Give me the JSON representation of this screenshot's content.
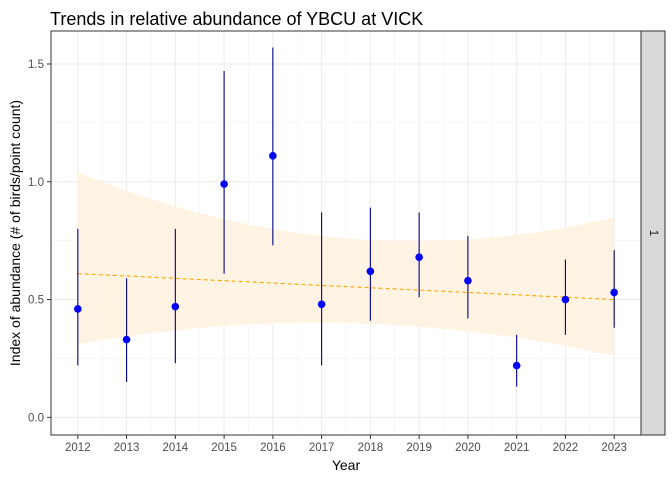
{
  "chart_data": {
    "type": "scatter",
    "title": "Trends in relative abundance of YBCU at VICK",
    "xlabel": "Year",
    "ylabel": "Index of abundance (# of birds/point count)",
    "facet_label": "1",
    "x": [
      2012,
      2013,
      2014,
      2015,
      2016,
      2017,
      2018,
      2019,
      2020,
      2021,
      2022,
      2023
    ],
    "y": [
      0.46,
      0.33,
      0.47,
      0.99,
      1.11,
      0.48,
      0.62,
      0.68,
      0.58,
      0.22,
      0.5,
      0.53
    ],
    "ymin": [
      0.22,
      0.15,
      0.23,
      0.61,
      0.73,
      0.22,
      0.41,
      0.51,
      0.42,
      0.13,
      0.35,
      0.38
    ],
    "ymax": [
      0.8,
      0.59,
      0.8,
      1.47,
      1.57,
      0.87,
      0.89,
      0.87,
      0.77,
      0.35,
      0.67,
      0.71
    ],
    "trend": {
      "x": [
        2012,
        2023
      ],
      "y": [
        0.61,
        0.5
      ],
      "band_lower": [
        0.31,
        0.26
      ],
      "band_upper": [
        1.04,
        0.85
      ],
      "band_mid_year": 2017.5,
      "band_mid_lower": [
        0.4
      ],
      "band_mid_upper": [
        0.76
      ],
      "line_color": "#FFA500",
      "band_color": "#FFF3E0"
    },
    "point_color": "#0000FF",
    "errorbar_color": "#00008B",
    "x_ticks": [
      2012,
      2013,
      2014,
      2015,
      2016,
      2017,
      2018,
      2019,
      2020,
      2021,
      2022,
      2023
    ],
    "x_tick_labels": [
      "2012",
      "2013",
      "2014",
      "2015",
      "2016",
      "2017",
      "2018",
      "2019",
      "2020",
      "2021",
      "2022",
      "2023"
    ],
    "y_ticks": [
      0.0,
      0.5,
      1.0,
      1.5
    ],
    "y_tick_labels": [
      "0.0",
      "0.5",
      "1.0",
      "1.5"
    ],
    "xlim": [
      2011.45,
      2023.55
    ],
    "ylim": [
      -0.075,
      1.64
    ],
    "grid": true
  }
}
